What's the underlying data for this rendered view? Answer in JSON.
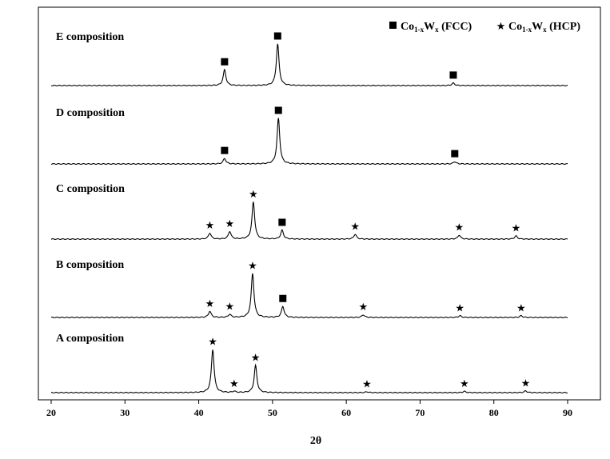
{
  "chart_data": {
    "type": "line",
    "xlabel": "2θ",
    "xlim": [
      20,
      90
    ],
    "x_ticks": [
      20,
      30,
      40,
      50,
      60,
      70,
      80,
      90
    ],
    "y_axis": "none",
    "legend": {
      "placement": "top-right",
      "entries": [
        {
          "marker": "square",
          "label_main": "Co",
          "label_sub": "1-x",
          "label_main2": "W",
          "label_sub2": "x",
          "label_phase": " (FCC)"
        },
        {
          "marker": "star",
          "label_main": "Co",
          "label_sub": "1-x",
          "label_main2": "W",
          "label_sub2": "x",
          "label_phase": " (HCP)"
        }
      ]
    },
    "series": [
      {
        "name": "E composition",
        "peaks": [
          {
            "x": 43.5,
            "h": 0.38
          },
          {
            "x": 50.7,
            "h": 1.0
          },
          {
            "x": 74.5,
            "h": 0.06
          }
        ],
        "markers": [
          {
            "x": 43.5,
            "type": "square"
          },
          {
            "x": 50.7,
            "type": "square"
          },
          {
            "x": 74.5,
            "type": "square"
          }
        ]
      },
      {
        "name": "D composition",
        "peaks": [
          {
            "x": 43.5,
            "h": 0.12
          },
          {
            "x": 50.8,
            "h": 1.0
          },
          {
            "x": 74.7,
            "h": 0.05
          }
        ],
        "markers": [
          {
            "x": 43.5,
            "type": "square"
          },
          {
            "x": 50.8,
            "type": "square"
          },
          {
            "x": 74.7,
            "type": "square"
          }
        ]
      },
      {
        "name": "C composition",
        "peaks": [
          {
            "x": 41.5,
            "h": 0.15
          },
          {
            "x": 44.2,
            "h": 0.19
          },
          {
            "x": 47.4,
            "h": 0.93
          },
          {
            "x": 51.3,
            "h": 0.22
          },
          {
            "x": 61.2,
            "h": 0.12
          },
          {
            "x": 75.3,
            "h": 0.1
          },
          {
            "x": 83.0,
            "h": 0.08
          }
        ],
        "markers": [
          {
            "x": 41.5,
            "type": "star"
          },
          {
            "x": 44.2,
            "type": "star"
          },
          {
            "x": 47.4,
            "type": "star"
          },
          {
            "x": 51.3,
            "type": "square"
          },
          {
            "x": 61.2,
            "type": "star"
          },
          {
            "x": 75.3,
            "type": "star"
          },
          {
            "x": 83.0,
            "type": "star"
          }
        ]
      },
      {
        "name": "B composition",
        "peaks": [
          {
            "x": 41.5,
            "h": 0.14
          },
          {
            "x": 44.2,
            "h": 0.07
          },
          {
            "x": 47.3,
            "h": 1.0
          },
          {
            "x": 51.4,
            "h": 0.25
          },
          {
            "x": 62.3,
            "h": 0.06
          },
          {
            "x": 75.4,
            "h": 0.04
          },
          {
            "x": 83.7,
            "h": 0.04
          }
        ],
        "markers": [
          {
            "x": 41.5,
            "type": "star"
          },
          {
            "x": 44.2,
            "type": "star"
          },
          {
            "x": 47.3,
            "type": "star"
          },
          {
            "x": 51.4,
            "type": "square"
          },
          {
            "x": 62.3,
            "type": "star"
          },
          {
            "x": 75.4,
            "type": "star"
          },
          {
            "x": 83.7,
            "type": "star"
          }
        ]
      },
      {
        "name": "A composition",
        "peaks": [
          {
            "x": 41.9,
            "h": 1.0
          },
          {
            "x": 44.8,
            "h": 0.03
          },
          {
            "x": 47.7,
            "h": 0.63
          },
          {
            "x": 62.8,
            "h": 0.02
          },
          {
            "x": 76.0,
            "h": 0.03
          },
          {
            "x": 84.3,
            "h": 0.04
          }
        ],
        "markers": [
          {
            "x": 41.9,
            "type": "star"
          },
          {
            "x": 44.8,
            "type": "star"
          },
          {
            "x": 47.7,
            "type": "star"
          },
          {
            "x": 62.8,
            "type": "star"
          },
          {
            "x": 76.0,
            "type": "star"
          },
          {
            "x": 84.3,
            "type": "star"
          }
        ]
      }
    ]
  }
}
